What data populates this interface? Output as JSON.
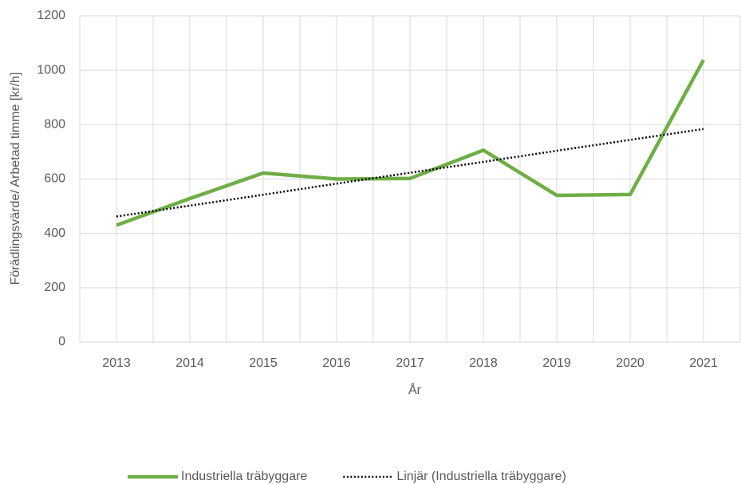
{
  "chart_data": {
    "type": "line",
    "categories": [
      "2013",
      "2014",
      "2015",
      "2016",
      "2017",
      "2018",
      "2019",
      "2020",
      "2021"
    ],
    "series": [
      {
        "name": "Industriella träbyggare",
        "color": "#70ad47",
        "values": [
          430,
          528,
          622,
          600,
          602,
          706,
          540,
          543,
          1038
        ]
      },
      {
        "name": "Linjär (Industriella träbyggare)",
        "color": "#000000",
        "dash": "dotted",
        "values": [
          462,
          502,
          542,
          583,
          623,
          663,
          704,
          744,
          784
        ]
      }
    ],
    "xlabel": "År",
    "ylabel": "Förädlingsvärde/ Arbetad timme [kr/h]",
    "ylim": [
      0,
      1200
    ],
    "yticks": [
      0,
      200,
      400,
      600,
      800,
      1000,
      1200
    ],
    "grid": true,
    "legend": "bottom"
  }
}
